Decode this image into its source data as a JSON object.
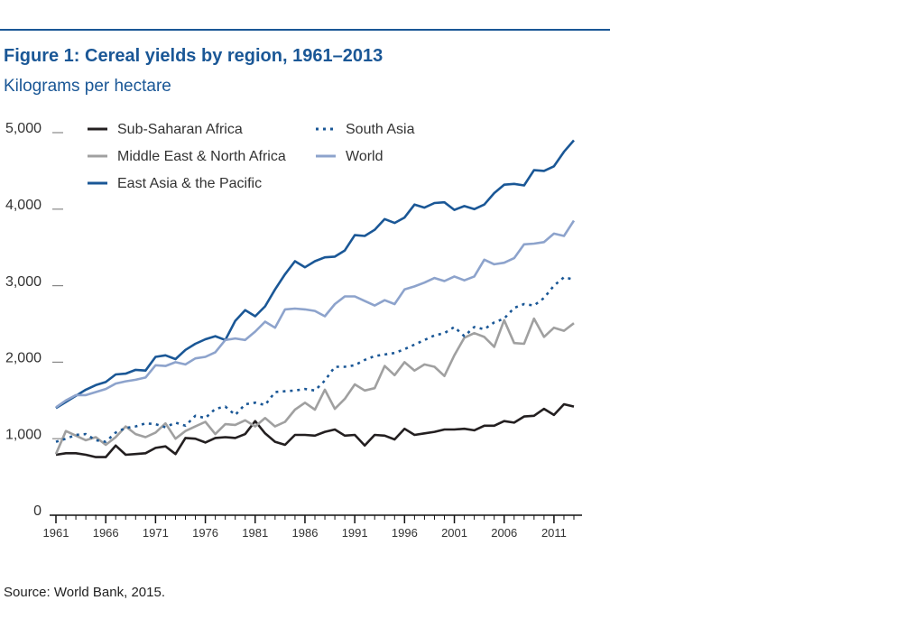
{
  "chart_data": {
    "type": "line",
    "title": "Figure 1: Cereal yields by region, 1961–2013",
    "subtitle": "Kilograms per hectare",
    "source": "Source: World Bank, 2015.",
    "x": [
      1961,
      1962,
      1963,
      1964,
      1965,
      1966,
      1967,
      1968,
      1969,
      1970,
      1971,
      1972,
      1973,
      1974,
      1975,
      1976,
      1977,
      1978,
      1979,
      1980,
      1981,
      1982,
      1983,
      1984,
      1985,
      1986,
      1987,
      1988,
      1989,
      1990,
      1991,
      1992,
      1993,
      1994,
      1995,
      1996,
      1997,
      1998,
      1999,
      2000,
      2001,
      2002,
      2003,
      2004,
      2005,
      2006,
      2007,
      2008,
      2009,
      2010,
      2011,
      2012,
      2013
    ],
    "xlim": [
      1961,
      2013
    ],
    "xticks": [
      1961,
      1966,
      1971,
      1976,
      1981,
      1986,
      1991,
      1996,
      2001,
      2006,
      2011
    ],
    "ylim": [
      0,
      5000
    ],
    "yticks": [
      0,
      {
        "value": 1000,
        "label": "1,000"
      },
      {
        "value": 2000,
        "label": "2,000"
      },
      {
        "value": 3000,
        "label": "3,000"
      },
      {
        "value": 4000,
        "label": "4,000"
      },
      {
        "value": 5000,
        "label": "5,000"
      }
    ],
    "series": [
      {
        "name": "Sub-Saharan Africa",
        "color": "#231f20",
        "dash": "solid",
        "values": [
          790,
          810,
          810,
          790,
          760,
          760,
          910,
          790,
          800,
          810,
          880,
          900,
          800,
          1010,
          1000,
          950,
          1010,
          1020,
          1010,
          1060,
          1230,
          1070,
          960,
          920,
          1050,
          1050,
          1040,
          1090,
          1120,
          1040,
          1050,
          910,
          1050,
          1040,
          990,
          1130,
          1050,
          1070,
          1090,
          1120,
          1120,
          1130,
          1110,
          1170,
          1170,
          1230,
          1210,
          1290,
          1300,
          1390,
          1310,
          1450,
          1420
        ]
      },
      {
        "name": "Middle East & North Africa",
        "color": "#a0a0a0",
        "dash": "solid",
        "values": [
          800,
          1100,
          1040,
          980,
          1020,
          920,
          1020,
          1160,
          1060,
          1020,
          1080,
          1200,
          1000,
          1100,
          1160,
          1220,
          1060,
          1190,
          1180,
          1240,
          1160,
          1270,
          1160,
          1220,
          1380,
          1470,
          1380,
          1640,
          1390,
          1520,
          1710,
          1630,
          1660,
          1950,
          1830,
          2000,
          1890,
          1970,
          1940,
          1820,
          2090,
          2320,
          2380,
          2330,
          2200,
          2550,
          2250,
          2240,
          2570,
          2330,
          2450,
          2410,
          2510
        ]
      },
      {
        "name": "East Asia & the Pacific",
        "color": "#1a5796",
        "dash": "solid",
        "values": [
          1400,
          1480,
          1560,
          1640,
          1700,
          1740,
          1840,
          1850,
          1900,
          1890,
          2070,
          2090,
          2040,
          2160,
          2240,
          2300,
          2340,
          2290,
          2540,
          2680,
          2600,
          2730,
          2950,
          3150,
          3320,
          3240,
          3320,
          3370,
          3380,
          3460,
          3660,
          3650,
          3730,
          3870,
          3820,
          3890,
          4060,
          4020,
          4080,
          4090,
          3990,
          4040,
          4000,
          4060,
          4210,
          4320,
          4330,
          4310,
          4510,
          4500,
          4560,
          4750,
          4900
        ]
      },
      {
        "name": "South Asia",
        "color": "#1a5796",
        "dash": "dotted",
        "values": [
          960,
          1000,
          1050,
          1060,
          980,
          960,
          1080,
          1140,
          1160,
          1200,
          1190,
          1150,
          1210,
          1170,
          1300,
          1270,
          1390,
          1420,
          1310,
          1450,
          1470,
          1440,
          1610,
          1620,
          1630,
          1650,
          1630,
          1760,
          1940,
          1940,
          1960,
          2030,
          2080,
          2100,
          2120,
          2170,
          2230,
          2290,
          2350,
          2380,
          2460,
          2340,
          2460,
          2430,
          2520,
          2570,
          2710,
          2760,
          2740,
          2840,
          3000,
          3110,
          3080
        ]
      },
      {
        "name": "World",
        "color": "#8da3cc",
        "dash": "solid",
        "values": [
          1410,
          1500,
          1570,
          1570,
          1610,
          1650,
          1720,
          1750,
          1770,
          1800,
          1960,
          1950,
          2000,
          1970,
          2050,
          2070,
          2130,
          2290,
          2310,
          2290,
          2400,
          2530,
          2450,
          2690,
          2700,
          2690,
          2670,
          2600,
          2760,
          2860,
          2860,
          2800,
          2740,
          2810,
          2760,
          2950,
          2990,
          3040,
          3100,
          3060,
          3120,
          3070,
          3120,
          3340,
          3280,
          3300,
          3360,
          3540,
          3550,
          3570,
          3680,
          3650,
          3850
        ]
      }
    ]
  }
}
